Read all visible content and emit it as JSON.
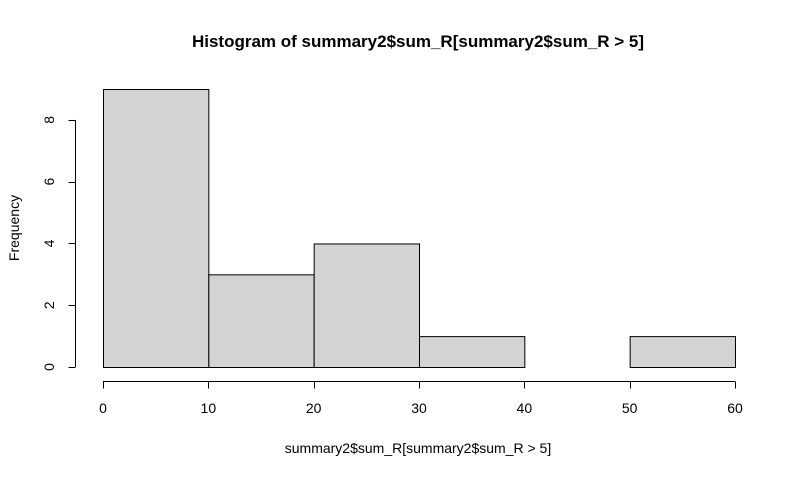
{
  "chart_data": {
    "type": "bar",
    "title": "Histogram of summary2$sum_R[summary2$sum_R > 5]",
    "xlabel": "summary2$sum_R[summary2$sum_R > 5]",
    "ylabel": "Frequency",
    "bins": [
      {
        "x0": 0,
        "x1": 10,
        "count": 9
      },
      {
        "x0": 10,
        "x1": 20,
        "count": 3
      },
      {
        "x0": 20,
        "x1": 30,
        "count": 4
      },
      {
        "x0": 30,
        "x1": 40,
        "count": 1
      },
      {
        "x0": 40,
        "x1": 50,
        "count": 0
      },
      {
        "x0": 50,
        "x1": 60,
        "count": 1
      }
    ],
    "xlim": [
      0,
      60
    ],
    "ylim": [
      0,
      9
    ],
    "xticks": [
      "0",
      "10",
      "20",
      "30",
      "40",
      "50",
      "60"
    ],
    "yticks": [
      "0",
      "2",
      "4",
      "6",
      "8"
    ],
    "grid": false,
    "bar_color": "#d3d3d3",
    "edge_color": "#000000"
  }
}
